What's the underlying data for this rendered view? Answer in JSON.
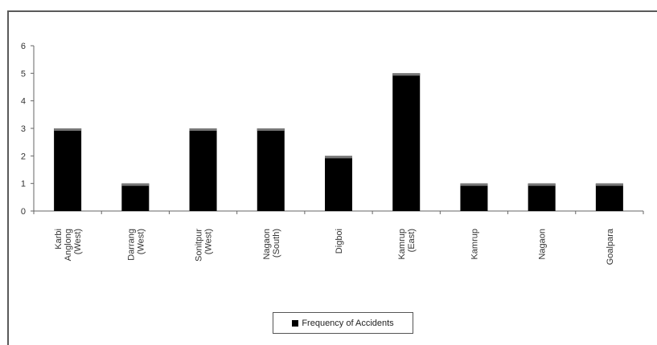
{
  "chart_data": {
    "type": "bar",
    "categories": [
      [
        "Karbi",
        "Anglong",
        "(West)"
      ],
      [
        "Darrang",
        "(West)"
      ],
      [
        "Sonitpur",
        "(West)"
      ],
      [
        "Nagaon",
        "(South)"
      ],
      [
        "Digboi"
      ],
      [
        "Kamrup",
        "(East)"
      ],
      [
        "Kamrup"
      ],
      [
        "Nagaon"
      ],
      [
        "Goalpara"
      ]
    ],
    "series": [
      {
        "name": "Frequency of Accidents",
        "values": [
          3,
          1,
          3,
          3,
          2,
          5,
          1,
          1,
          1
        ]
      }
    ],
    "ylim": [
      0,
      6
    ],
    "yticks": [
      0,
      1,
      2,
      3,
      4,
      5,
      6
    ],
    "bar_color": "#000000",
    "bar_top_color": "#777777",
    "legend_position": "bottom"
  }
}
